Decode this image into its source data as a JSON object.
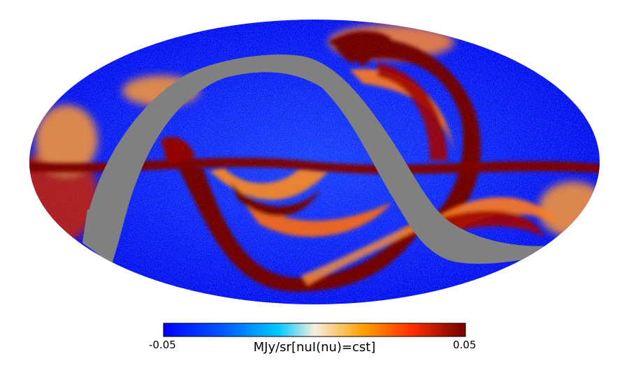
{
  "figure": {
    "projection": "mollweide",
    "description_colors": {
      "background": "#ffffff",
      "masked": "#808080",
      "cmap": [
        "#0000ff",
        "#0050ff",
        "#00c8ff",
        "#f5f0e0",
        "#ffa000",
        "#ff3000",
        "#700000"
      ]
    }
  },
  "colorbar": {
    "min_label": "-0.05",
    "max_label": "0.05",
    "unit_label": "MJy/sr[nuI(nu)=cst]"
  }
}
